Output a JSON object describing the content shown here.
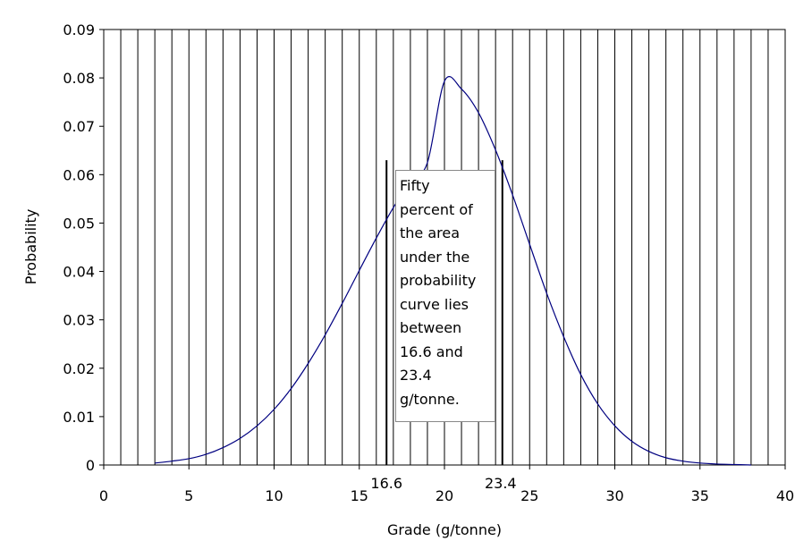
{
  "chart_data": {
    "type": "line",
    "title": "",
    "xlabel": "Grade (g/tonne)",
    "ylabel": "Probability",
    "xlim": [
      0,
      40
    ],
    "ylim": [
      0,
      0.09
    ],
    "x_ticks": [
      "0",
      "5",
      "10",
      "15",
      "20",
      "25",
      "30",
      "35",
      "40"
    ],
    "y_ticks": [
      "0",
      "0.01",
      "0.02",
      "0.03",
      "0.04",
      "0.05",
      "0.06",
      "0.07",
      "0.08",
      "0.09"
    ],
    "vertical_gridlines_every": 1,
    "series": [
      {
        "color": "#000080",
        "x": [
          3,
          4,
          5,
          6,
          7,
          8,
          9,
          10,
          11,
          12,
          13,
          14,
          15,
          16,
          17,
          18,
          19,
          20,
          21,
          22,
          23,
          24,
          25,
          26,
          27,
          28,
          29,
          30,
          31,
          32,
          33,
          34,
          35,
          36,
          37,
          38
        ],
        "y": [
          0.0004,
          0.0008,
          0.0013,
          0.0022,
          0.0036,
          0.0055,
          0.0081,
          0.0115,
          0.0158,
          0.021,
          0.0269,
          0.0334,
          0.0402,
          0.0469,
          0.0532,
          0.0585,
          0.0625,
          0.0793,
          0.0777,
          0.0728,
          0.0651,
          0.0558,
          0.0456,
          0.0355,
          0.0265,
          0.0187,
          0.0126,
          0.0081,
          0.0049,
          0.0028,
          0.0015,
          0.0008,
          0.0004,
          0.0002,
          0.0001,
          0.0
        ]
      }
    ],
    "markers": [
      {
        "x": 16.6,
        "label": "16.6"
      },
      {
        "x": 23.4,
        "label": "23.4"
      }
    ],
    "annotation": {
      "lines": [
        "Fifty",
        "percent of",
        "the area",
        "under the",
        "probability",
        "curve lies",
        "between",
        "16.6 and",
        "23.4",
        "g/tonne."
      ]
    }
  }
}
